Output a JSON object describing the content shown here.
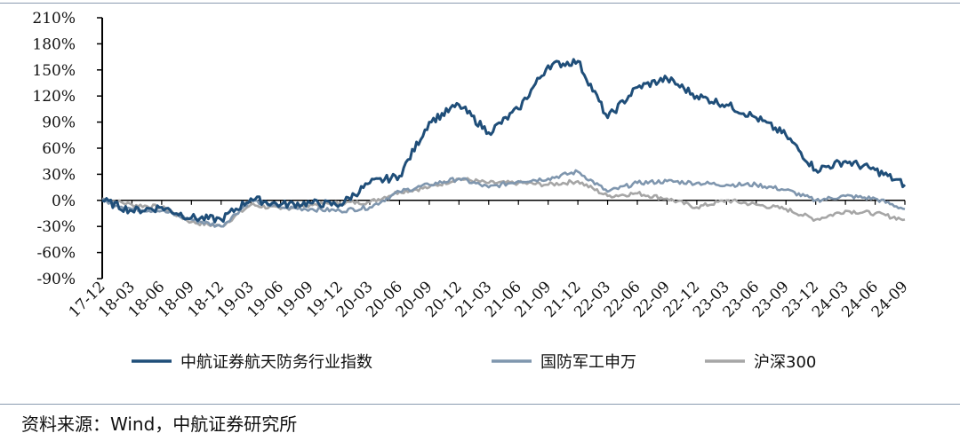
{
  "chart_data": {
    "type": "line",
    "title": "",
    "xlabel": "",
    "ylabel": "",
    "ylim": [
      -90,
      210
    ],
    "yticks": [
      "210%",
      "180%",
      "150%",
      "120%",
      "90%",
      "60%",
      "30%",
      "0%",
      "-30%",
      "-60%",
      "-90%"
    ],
    "ytick_values": [
      210,
      180,
      150,
      120,
      90,
      60,
      30,
      0,
      -30,
      -60,
      -90
    ],
    "categories": [
      "17-12",
      "18-03",
      "18-06",
      "18-09",
      "18-12",
      "19-03",
      "19-06",
      "19-09",
      "19-12",
      "20-03",
      "20-06",
      "20-09",
      "20-12",
      "21-03",
      "21-06",
      "21-09",
      "21-12",
      "22-03",
      "22-06",
      "22-09",
      "22-12",
      "23-03",
      "23-06",
      "23-09",
      "23-12",
      "24-03",
      "24-06",
      "24-09"
    ],
    "series": [
      {
        "name": "中航证券航天防务行业指数",
        "color": "#1f4e79",
        "values": [
          0,
          -12,
          -8,
          -20,
          -22,
          2,
          -5,
          -3,
          -5,
          20,
          28,
          90,
          110,
          78,
          105,
          155,
          160,
          95,
          130,
          140,
          120,
          110,
          95,
          75,
          35,
          45,
          35,
          18
        ]
      },
      {
        "name": "国防军工申万",
        "color": "#7f96ae",
        "values": [
          0,
          -10,
          -12,
          -22,
          -30,
          0,
          -8,
          -10,
          -12,
          -8,
          10,
          18,
          25,
          15,
          22,
          25,
          33,
          10,
          20,
          22,
          20,
          18,
          18,
          12,
          0,
          5,
          2,
          -10
        ]
      },
      {
        "name": "沪深300",
        "color": "#a6a6a6",
        "values": [
          2,
          -5,
          -8,
          -25,
          -30,
          -5,
          -10,
          -5,
          -3,
          -2,
          10,
          15,
          25,
          20,
          20,
          18,
          22,
          5,
          8,
          2,
          -8,
          0,
          -5,
          -10,
          -22,
          -12,
          -15,
          -22
        ]
      }
    ],
    "legend": {
      "position": "bottom",
      "entries": [
        "中航证券航天防务行业指数",
        "国防军工申万",
        "沪深300"
      ]
    }
  },
  "source_note": "资料来源：Wind，中航证券研究所"
}
